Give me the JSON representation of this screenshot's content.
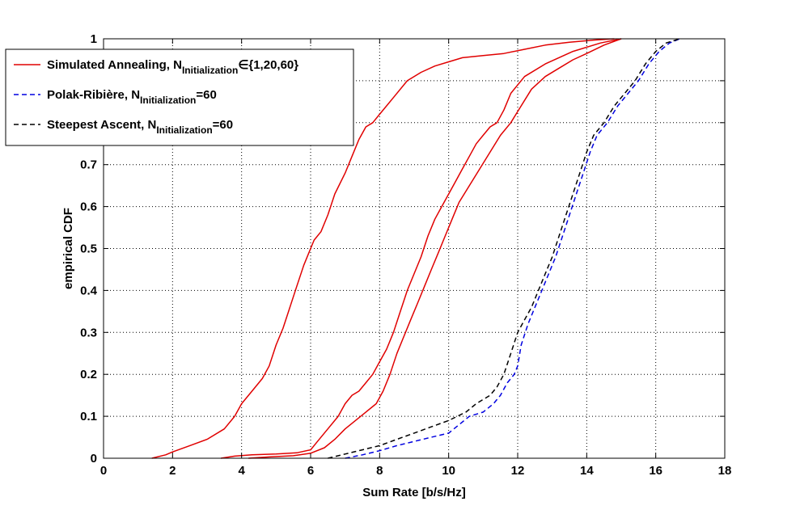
{
  "chart_data": {
    "type": "line",
    "title": "",
    "xlabel": "Sum Rate [b/s/Hz]",
    "ylabel": "empirical CDF",
    "xlim": [
      0,
      18
    ],
    "ylim": [
      0,
      1
    ],
    "xticks": [
      "0",
      "2",
      "4",
      "6",
      "8",
      "10",
      "12",
      "14",
      "16",
      "18"
    ],
    "yticks": [
      "0",
      "0.1",
      "0.2",
      "0.3",
      "0.4",
      "0.5",
      "0.6",
      "0.7",
      "0.8",
      "0.9",
      "1"
    ],
    "grid": true,
    "legend_position": "top-left",
    "legend": [
      {
        "text": "Simulated Annealing, N",
        "sub": "Initialization",
        "suffix": "∈{1,20,60}",
        "color": "#e00000",
        "dash": "solid"
      },
      {
        "text": "Polak-Ribière, N",
        "sub": "Initialization",
        "suffix": "=60",
        "color": "#0000e0",
        "dash": "dashed"
      },
      {
        "text": "Steepest Ascent, N",
        "sub": "Initialization",
        "suffix": "=60",
        "color": "#000000",
        "dash": "dashed"
      }
    ],
    "series": [
      {
        "color": "#e00000",
        "dash": "solid",
        "x": [
          1.4,
          1.8,
          2.0,
          2.5,
          3.0,
          3.5,
          3.8,
          4.0,
          4.3,
          4.6,
          4.8,
          5.0,
          5.2,
          5.4,
          5.6,
          5.8,
          6.0,
          6.1,
          6.3,
          6.5,
          6.7,
          7.0,
          7.2,
          7.4,
          7.6,
          7.8,
          8.0,
          8.4,
          8.8,
          9.2,
          9.6,
          10.0,
          10.4,
          11.0,
          11.6,
          12.2,
          12.8,
          13.5,
          14.2,
          14.8
        ],
        "y": [
          0.0,
          0.008,
          0.015,
          0.03,
          0.045,
          0.07,
          0.1,
          0.13,
          0.16,
          0.19,
          0.22,
          0.27,
          0.31,
          0.36,
          0.41,
          0.46,
          0.5,
          0.52,
          0.54,
          0.58,
          0.63,
          0.68,
          0.72,
          0.76,
          0.79,
          0.8,
          0.82,
          0.86,
          0.9,
          0.92,
          0.935,
          0.945,
          0.955,
          0.96,
          0.965,
          0.975,
          0.985,
          0.992,
          0.997,
          1.0
        ]
      },
      {
        "color": "#e00000",
        "dash": "solid",
        "x": [
          3.4,
          3.8,
          4.3,
          5.0,
          5.6,
          6.0,
          6.2,
          6.5,
          6.8,
          7.0,
          7.2,
          7.4,
          7.6,
          7.8,
          8.0,
          8.2,
          8.4,
          8.6,
          8.8,
          9.0,
          9.2,
          9.4,
          9.6,
          9.8,
          10.0,
          10.2,
          10.4,
          10.6,
          10.8,
          11.0,
          11.2,
          11.4,
          11.6,
          11.8,
          12.2,
          12.8,
          13.6,
          14.4,
          15.0
        ],
        "y": [
          0.0,
          0.005,
          0.008,
          0.01,
          0.013,
          0.02,
          0.04,
          0.07,
          0.1,
          0.13,
          0.15,
          0.16,
          0.18,
          0.2,
          0.23,
          0.26,
          0.3,
          0.35,
          0.4,
          0.44,
          0.48,
          0.53,
          0.57,
          0.6,
          0.63,
          0.66,
          0.69,
          0.72,
          0.75,
          0.77,
          0.79,
          0.8,
          0.83,
          0.87,
          0.91,
          0.94,
          0.97,
          0.99,
          1.0
        ]
      },
      {
        "color": "#e00000",
        "dash": "solid",
        "x": [
          4.2,
          4.8,
          5.5,
          6.0,
          6.4,
          6.7,
          7.0,
          7.3,
          7.6,
          7.9,
          8.1,
          8.3,
          8.5,
          8.7,
          8.9,
          9.1,
          9.3,
          9.5,
          9.7,
          9.9,
          10.1,
          10.3,
          10.6,
          10.9,
          11.2,
          11.5,
          11.8,
          12.1,
          12.4,
          12.8,
          13.2,
          13.6,
          14.0,
          14.5,
          15.0
        ],
        "y": [
          0.0,
          0.003,
          0.006,
          0.012,
          0.025,
          0.045,
          0.07,
          0.09,
          0.11,
          0.13,
          0.16,
          0.2,
          0.25,
          0.29,
          0.33,
          0.37,
          0.41,
          0.45,
          0.49,
          0.53,
          0.57,
          0.61,
          0.65,
          0.69,
          0.73,
          0.77,
          0.8,
          0.84,
          0.88,
          0.91,
          0.93,
          0.95,
          0.965,
          0.985,
          1.0
        ]
      },
      {
        "color": "#0000e0",
        "dash": "dashed",
        "x": [
          7.0,
          7.5,
          8.0,
          8.5,
          9.0,
          9.5,
          10.0,
          10.3,
          10.6,
          11.0,
          11.3,
          11.5,
          11.7,
          11.9,
          12.0,
          12.1,
          12.3,
          12.5,
          12.7,
          12.9,
          13.1,
          13.3,
          13.5,
          13.7,
          13.9,
          14.1,
          14.3,
          14.6,
          14.9,
          15.2,
          15.5,
          15.8,
          16.1,
          16.4,
          16.7
        ],
        "y": [
          0.0,
          0.008,
          0.018,
          0.03,
          0.04,
          0.05,
          0.06,
          0.08,
          0.1,
          0.11,
          0.13,
          0.15,
          0.18,
          0.2,
          0.22,
          0.27,
          0.32,
          0.36,
          0.4,
          0.44,
          0.48,
          0.53,
          0.58,
          0.63,
          0.68,
          0.73,
          0.77,
          0.8,
          0.84,
          0.87,
          0.9,
          0.94,
          0.97,
          0.99,
          1.0
        ]
      },
      {
        "color": "#000000",
        "dash": "dashed",
        "x": [
          6.5,
          7.0,
          7.5,
          8.0,
          8.5,
          9.0,
          9.5,
          10.0,
          10.5,
          10.8,
          11.0,
          11.2,
          11.4,
          11.6,
          11.8,
          12.0,
          12.2,
          12.4,
          12.6,
          12.8,
          13.0,
          13.2,
          13.4,
          13.6,
          13.8,
          14.0,
          14.2,
          14.5,
          14.8,
          15.1,
          15.4,
          15.7,
          16.0,
          16.3,
          16.7
        ],
        "y": [
          0.0,
          0.01,
          0.02,
          0.03,
          0.045,
          0.06,
          0.075,
          0.09,
          0.11,
          0.13,
          0.14,
          0.15,
          0.17,
          0.2,
          0.25,
          0.3,
          0.33,
          0.36,
          0.4,
          0.44,
          0.48,
          0.53,
          0.58,
          0.63,
          0.68,
          0.73,
          0.77,
          0.8,
          0.84,
          0.87,
          0.9,
          0.94,
          0.97,
          0.99,
          1.0
        ]
      }
    ]
  }
}
